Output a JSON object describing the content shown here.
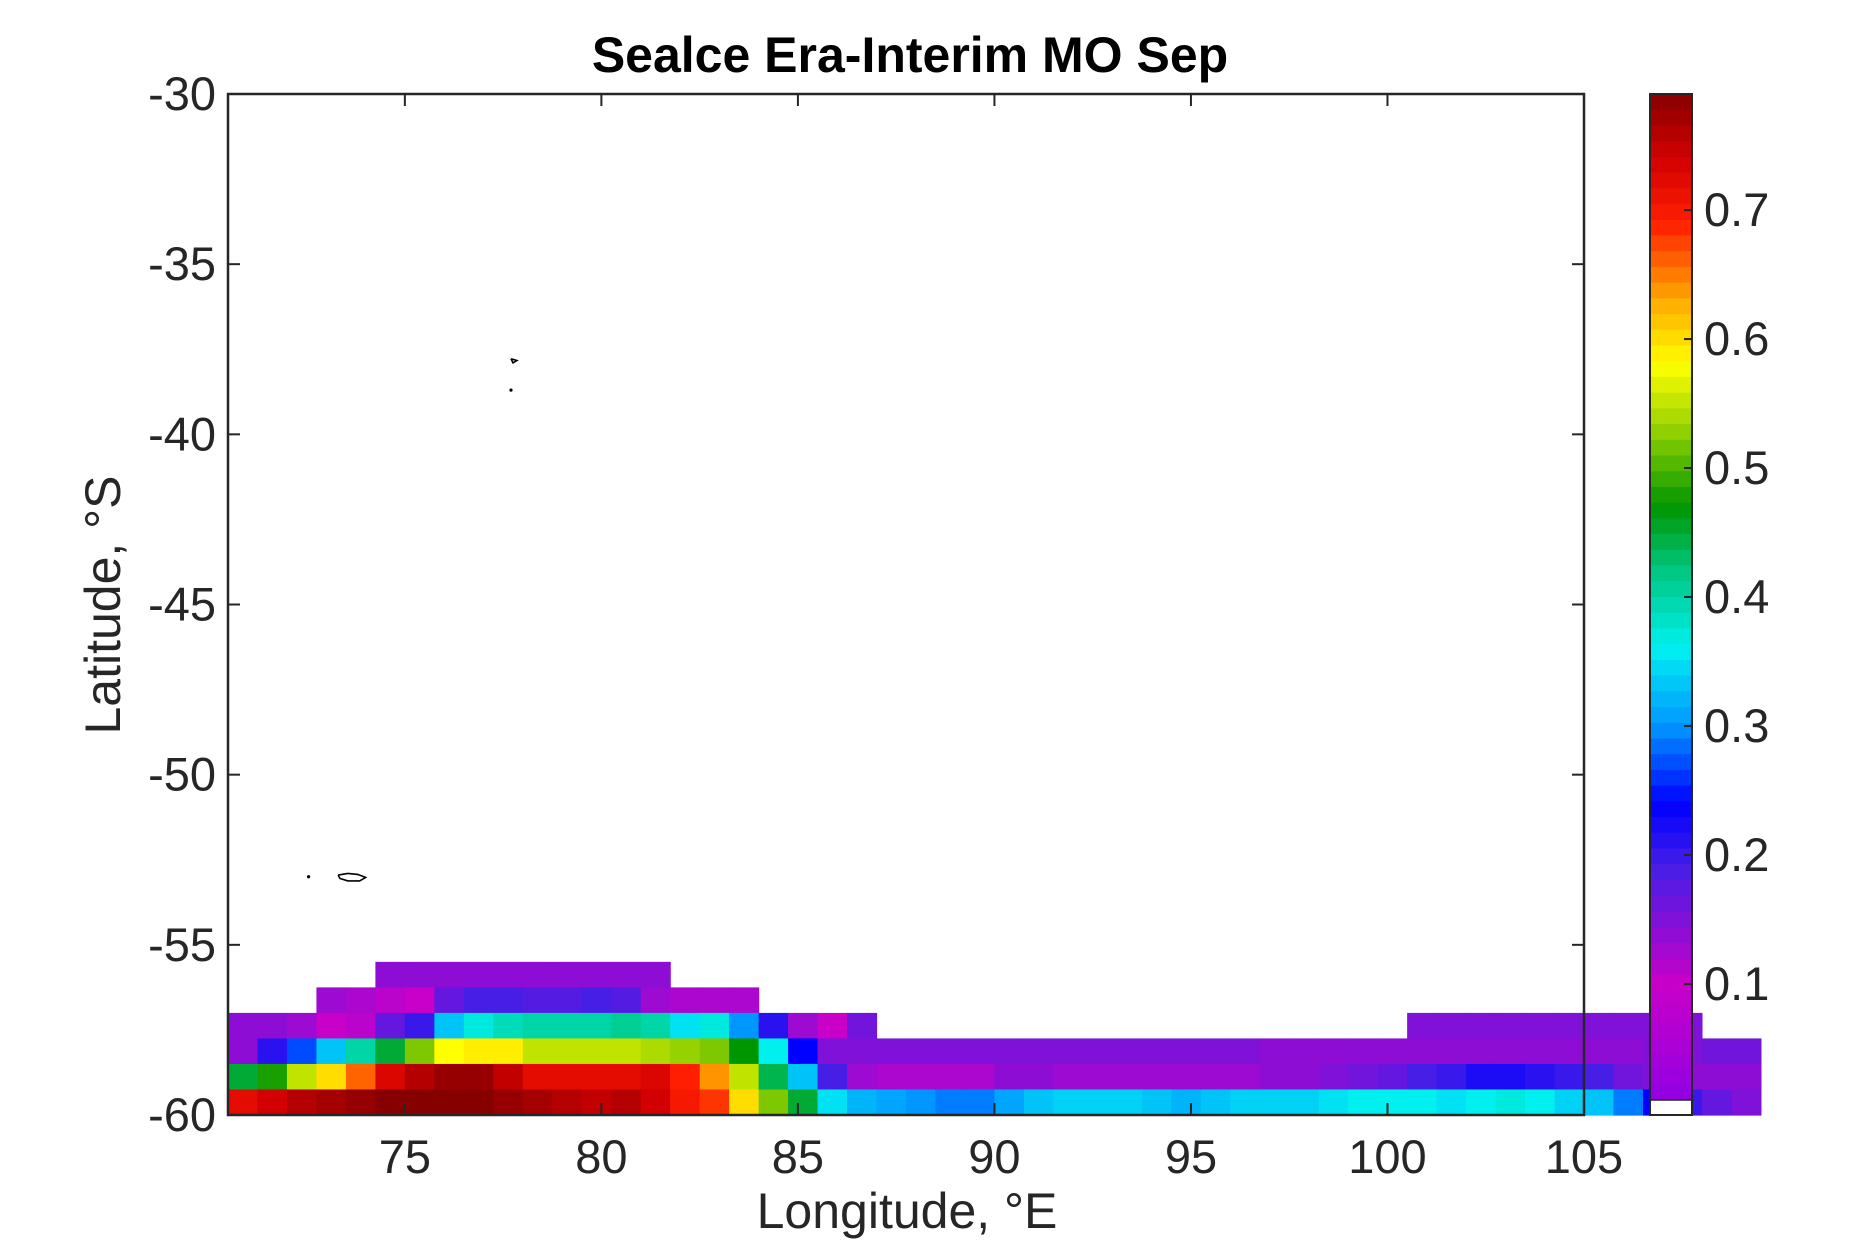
{
  "chart_data": {
    "type": "heatmap",
    "title": "Sealce Era-Interim MO Sep",
    "xlabel": "Longitude, °E",
    "ylabel": "Latitude, °S",
    "xlim": [
      70.5,
      105
    ],
    "ylim": [
      -60,
      -30
    ],
    "xticks": [
      75,
      80,
      85,
      90,
      95,
      100,
      105
    ],
    "yticks": [
      -30,
      -35,
      -40,
      -45,
      -50,
      -55,
      -60
    ],
    "colorbar": {
      "ticks": [
        0.1,
        0.2,
        0.3,
        0.4,
        0.5,
        0.6,
        0.7
      ],
      "range": [
        0.01,
        0.79
      ],
      "colormap": "jet-purple-to-darkred",
      "nodata_color": "#ffffff"
    },
    "grid": false,
    "cell_size_deg": [
      0.75,
      0.75
    ],
    "lon0": 70.5,
    "lat_rows": [
      -56.25,
      -57.0,
      -57.75,
      -58.5,
      -59.25,
      -60.0
    ],
    "row_start_lon": [
      74.25,
      72.75,
      70.5,
      70.5,
      70.5,
      70.5
    ],
    "rows": [
      [
        0.14,
        0.14,
        0.14,
        0.14,
        0.14,
        0.14,
        0.14,
        0.14,
        0.14,
        0.14
      ],
      [
        0.13,
        0.12,
        0.11,
        0.1,
        0.17,
        0.19,
        0.19,
        0.18,
        0.18,
        0.19,
        0.18,
        0.13,
        0.12,
        0.12,
        0.12
      ],
      [
        0.14,
        0.14,
        0.13,
        0.1,
        0.11,
        0.17,
        0.2,
        0.33,
        0.37,
        0.39,
        0.4,
        0.4,
        0.4,
        0.41,
        0.4,
        0.35,
        0.37,
        0.3,
        0.21,
        0.13,
        0.1,
        0.16,
        null,
        null,
        null,
        null,
        null,
        null,
        null,
        null,
        null,
        null,
        null,
        null,
        null,
        null,
        null,
        null,
        null,
        null,
        0.15,
        0.15,
        0.15,
        0.15,
        0.15,
        0.15,
        0.15,
        0.15,
        0.15,
        0.15
      ],
      [
        0.14,
        0.21,
        0.27,
        0.33,
        0.4,
        0.45,
        0.52,
        0.58,
        0.59,
        0.59,
        0.55,
        0.55,
        0.55,
        0.55,
        0.54,
        0.53,
        0.52,
        0.47,
        0.36,
        0.24,
        0.15,
        0.15,
        0.15,
        0.15,
        0.15,
        0.15,
        0.15,
        0.15,
        0.15,
        0.15,
        0.15,
        0.15,
        0.15,
        0.15,
        0.15,
        0.14,
        0.14,
        0.14,
        0.14,
        0.14,
        0.14,
        0.14,
        0.14,
        0.14,
        0.14,
        0.14,
        0.14,
        0.14,
        0.15,
        0.15,
        0.16,
        0.16
      ],
      [
        0.45,
        0.48,
        0.55,
        0.6,
        0.66,
        0.73,
        0.76,
        0.78,
        0.78,
        0.75,
        0.72,
        0.72,
        0.72,
        0.72,
        0.73,
        0.69,
        0.64,
        0.55,
        0.44,
        0.33,
        0.19,
        0.13,
        0.12,
        0.12,
        0.12,
        0.12,
        0.14,
        0.14,
        0.13,
        0.13,
        0.13,
        0.13,
        0.13,
        0.13,
        0.13,
        0.14,
        0.14,
        0.15,
        0.16,
        0.17,
        0.19,
        0.2,
        0.22,
        0.22,
        0.21,
        0.2,
        0.19,
        0.16,
        0.15,
        0.14,
        0.14,
        0.14
      ],
      [
        0.72,
        0.74,
        0.76,
        0.77,
        0.78,
        0.79,
        0.79,
        0.79,
        0.79,
        0.78,
        0.77,
        0.76,
        0.75,
        0.76,
        0.74,
        0.7,
        0.68,
        0.6,
        0.52,
        0.45,
        0.35,
        0.32,
        0.31,
        0.3,
        0.29,
        0.29,
        0.31,
        0.33,
        0.34,
        0.34,
        0.34,
        0.33,
        0.32,
        0.33,
        0.34,
        0.34,
        0.34,
        0.35,
        0.36,
        0.36,
        0.36,
        0.35,
        0.36,
        0.37,
        0.36,
        0.34,
        0.33,
        0.29,
        0.24,
        0.2,
        0.17,
        0.15
      ]
    ],
    "contours": [
      {
        "lon": [
          77.7,
          77.85,
          77.75,
          77.7
        ],
        "lat": [
          -37.78,
          -37.83,
          -37.9,
          -37.78
        ]
      },
      {
        "lon": [
          77.7
        ],
        "lat": [
          -38.7
        ]
      },
      {
        "lon": [
          73.3,
          73.55,
          73.8,
          74.0,
          73.85,
          73.55,
          73.35,
          73.3
        ],
        "lat": [
          -52.95,
          -52.9,
          -52.93,
          -53.02,
          -53.12,
          -53.12,
          -53.05,
          -52.95
        ]
      },
      {
        "lon": [
          72.55
        ],
        "lat": [
          -53.0
        ]
      }
    ]
  }
}
